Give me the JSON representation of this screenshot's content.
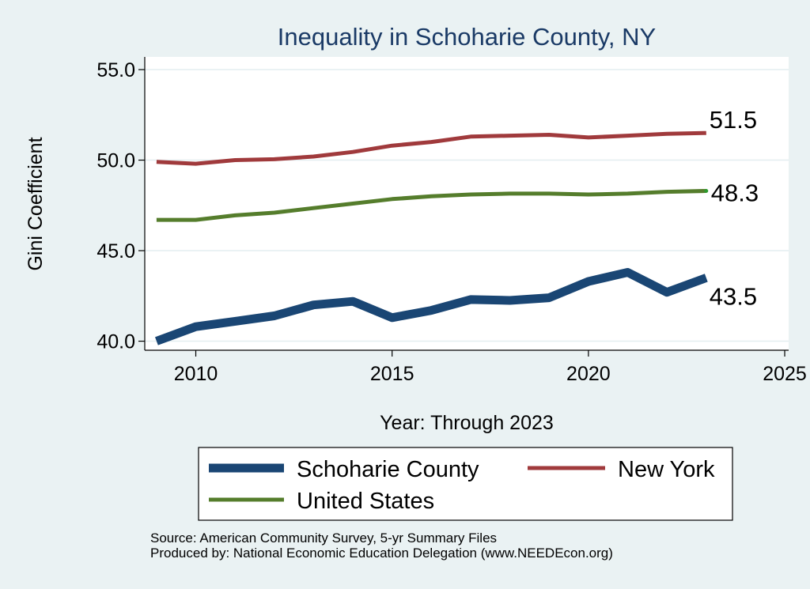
{
  "chart_data": {
    "type": "line",
    "title": "Inequality in Schoharie County, NY",
    "xlabel": "Year: Through 2023",
    "ylabel": "Gini Coefficient",
    "xlim": [
      2008.7,
      2025.1
    ],
    "ylim": [
      39.5,
      55.7
    ],
    "x_ticks": [
      2010,
      2015,
      2020,
      2025
    ],
    "y_ticks": [
      40,
      45,
      50,
      55
    ],
    "y_tick_labels": [
      "40.0",
      "45.0",
      "50.0",
      "55.0"
    ],
    "grid": true,
    "legend_position": "bottom",
    "x": [
      2009,
      2010,
      2011,
      2012,
      2013,
      2014,
      2015,
      2016,
      2017,
      2018,
      2019,
      2020,
      2021,
      2022,
      2023
    ],
    "series": [
      {
        "name": "Schoharie County",
        "color": "#1a4674",
        "end_label": "43.5",
        "values": [
          40.0,
          40.8,
          41.1,
          41.4,
          42.0,
          42.2,
          41.3,
          41.7,
          42.3,
          42.25,
          42.4,
          43.3,
          43.8,
          42.7,
          43.5
        ]
      },
      {
        "name": "New York",
        "color": "#a03a3c",
        "end_label": "51.5",
        "values": [
          49.9,
          49.8,
          50.0,
          50.05,
          50.2,
          50.45,
          50.8,
          51.0,
          51.3,
          51.35,
          51.4,
          51.25,
          51.35,
          51.45,
          51.5
        ]
      },
      {
        "name": "United States",
        "color": "#557d2c",
        "end_label": "48.3",
        "values": [
          46.7,
          46.7,
          46.95,
          47.1,
          47.35,
          47.6,
          47.85,
          48.0,
          48.1,
          48.15,
          48.15,
          48.1,
          48.15,
          48.25,
          48.3
        ]
      }
    ]
  },
  "legend": {
    "items": [
      "Schoharie County",
      "New York",
      "United States"
    ]
  },
  "source": {
    "line1": "Source: American Community Survey, 5-yr Summary Files",
    "line2": "Produced by: National Economic Education Delegation (www.NEEDEcon.org)"
  }
}
